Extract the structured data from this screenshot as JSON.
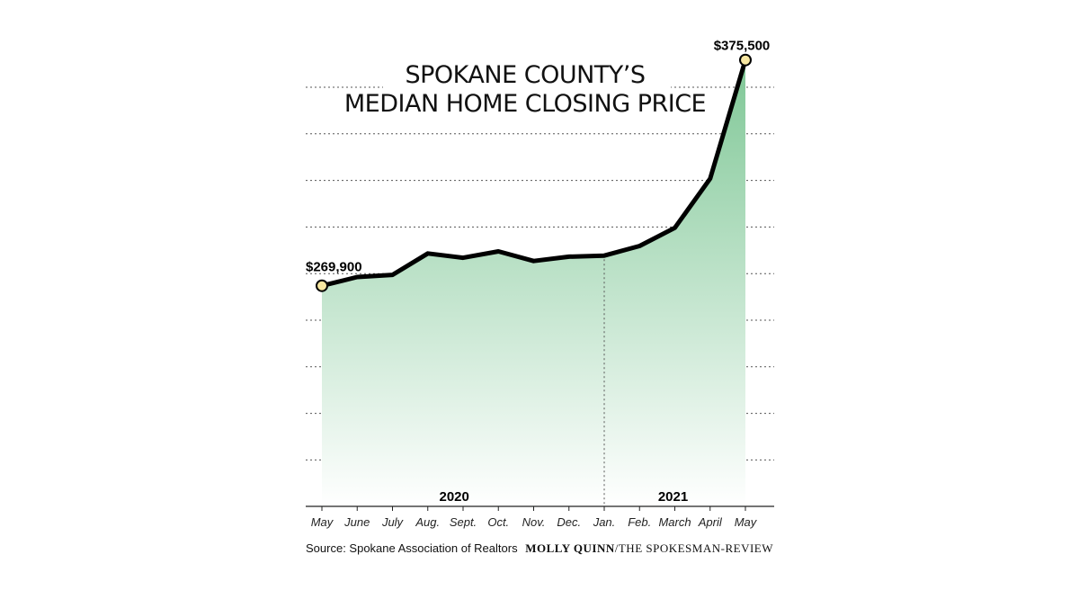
{
  "chart_data": {
    "type": "area",
    "title_line1": "SPOKANE COUNTY’S",
    "title_line2": "MEDIAN HOME CLOSING PRICE",
    "categories": [
      "May",
      "June",
      "July",
      "Aug.",
      "Sept.",
      "Oct.",
      "Nov.",
      "Dec.",
      "Jan.",
      "Feb.",
      "March",
      "April",
      "May"
    ],
    "values": [
      269900,
      274000,
      275000,
      285000,
      283000,
      286000,
      281500,
      283500,
      284000,
      288500,
      297000,
      320000,
      375500
    ],
    "year_labels": [
      {
        "label": "2020",
        "center_index": 3.75
      },
      {
        "label": "2021",
        "center_index": 9.95
      }
    ],
    "year_divider_index": 8,
    "first_label": "$269,900",
    "last_label": "$375,500",
    "ylim": [
      160000,
      380000
    ],
    "grid": "horizontal dashed",
    "colors": {
      "fill_top": "#7fc796",
      "fill_bottom": "#ffffff",
      "line": "#000000",
      "marker": "#f7e7a1",
      "grid": "#555555"
    },
    "source": "Source: Spokane Association of Realtors",
    "credit_name": "MOLLY QUINN",
    "credit_org": "/THE SPOKESMAN-REVIEW"
  }
}
